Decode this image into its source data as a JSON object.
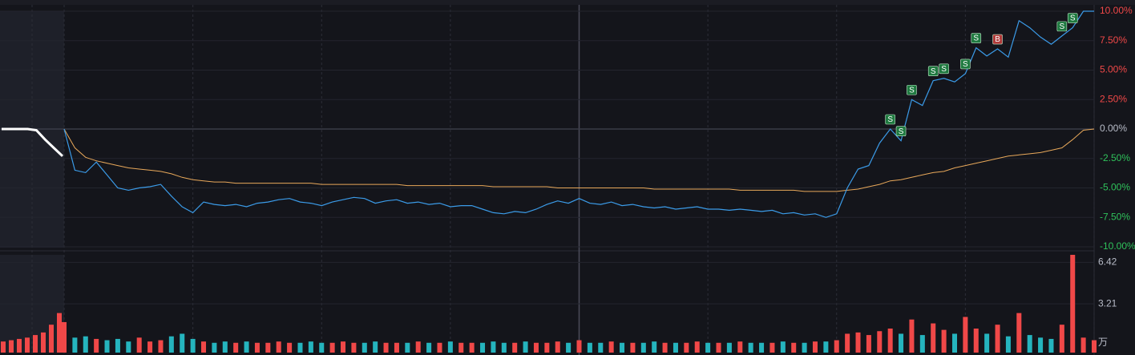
{
  "chart_data": {
    "type": "line",
    "ylim": [
      -10,
      10
    ],
    "yticks": [
      {
        "value": 10,
        "label": "10.00%"
      },
      {
        "value": 7.5,
        "label": "7.50%"
      },
      {
        "value": 5,
        "label": "5.00%"
      },
      {
        "value": 2.5,
        "label": "2.50%"
      },
      {
        "value": 0,
        "label": "0.00%"
      },
      {
        "value": -2.5,
        "label": "-2.50%"
      },
      {
        "value": -5,
        "label": "-5.00%"
      },
      {
        "value": -7.5,
        "label": "-7.50%"
      },
      {
        "value": -10,
        "label": "-10.00%"
      }
    ],
    "up_tick_color": "#f04848",
    "down_tick_color": "#2fc25b",
    "zero_tick_color": "#b8bcc8",
    "premarket": {
      "color": "#ffffff",
      "values": [
        0,
        0,
        0,
        0,
        -0.1,
        -0.9,
        -1.6,
        -2.3
      ]
    },
    "price": {
      "color": "#3b9be8",
      "values": [
        0,
        -3.5,
        -3.7,
        -2.8,
        -3.9,
        -5.0,
        -5.2,
        -5.0,
        -4.9,
        -4.7,
        -5.7,
        -6.6,
        -7.1,
        -6.2,
        -6.4,
        -6.5,
        -6.4,
        -6.6,
        -6.3,
        -6.2,
        -6.0,
        -5.9,
        -6.2,
        -6.3,
        -6.5,
        -6.2,
        -6.0,
        -5.8,
        -5.9,
        -6.3,
        -6.1,
        -6.0,
        -6.3,
        -6.2,
        -6.4,
        -6.3,
        -6.6,
        -6.5,
        -6.5,
        -6.8,
        -7.1,
        -7.2,
        -7.0,
        -7.1,
        -6.8,
        -6.4,
        -6.1,
        -6.3,
        -5.9,
        -6.3,
        -6.4,
        -6.2,
        -6.5,
        -6.4,
        -6.6,
        -6.7,
        -6.6,
        -6.8,
        -6.7,
        -6.6,
        -6.8,
        -6.8,
        -6.9,
        -6.8,
        -6.9,
        -7.0,
        -6.9,
        -7.2,
        -7.1,
        -7.3,
        -7.2,
        -7.5,
        -7.2,
        -5.0,
        -3.4,
        -3.1,
        -1.2,
        0.0,
        -1.0,
        2.5,
        2.0,
        4.1,
        4.3,
        4.0,
        4.7,
        6.9,
        6.2,
        6.8,
        6.1,
        9.2,
        8.6,
        7.8,
        7.2,
        7.9,
        8.6,
        10.0,
        10.0
      ],
      "trade_labels": [
        null,
        null,
        null,
        null,
        null,
        null,
        null,
        null,
        null,
        null,
        null,
        null,
        null,
        null,
        null,
        null,
        null,
        null,
        null,
        null,
        null,
        null,
        null,
        null,
        null,
        null,
        null,
        null,
        null,
        null,
        null,
        null,
        null,
        null,
        null,
        null,
        null,
        null,
        null,
        null,
        null,
        null,
        null,
        null,
        null,
        null,
        null,
        null,
        null,
        null,
        null,
        null,
        null,
        null,
        null,
        null,
        null,
        null,
        null,
        null,
        null,
        null,
        null,
        null,
        null,
        null,
        null,
        null,
        null,
        null,
        null,
        null,
        null,
        null,
        null,
        null,
        null,
        "S",
        "S",
        "S",
        null,
        "S",
        "S",
        null,
        "S",
        "S",
        null,
        "B",
        null,
        null,
        null,
        null,
        null,
        "S",
        "S",
        null,
        null
      ],
      "label_colors": {
        "S": "#1f7a40",
        "B": "#b23a3a"
      }
    },
    "average": {
      "color": "#e8a85a",
      "values": [
        0,
        -1.6,
        -2.4,
        -2.7,
        -2.9,
        -3.1,
        -3.3,
        -3.4,
        -3.5,
        -3.6,
        -3.8,
        -4.1,
        -4.3,
        -4.4,
        -4.5,
        -4.5,
        -4.6,
        -4.6,
        -4.6,
        -4.6,
        -4.6,
        -4.6,
        -4.6,
        -4.6,
        -4.7,
        -4.7,
        -4.7,
        -4.7,
        -4.7,
        -4.7,
        -4.7,
        -4.7,
        -4.8,
        -4.8,
        -4.8,
        -4.8,
        -4.8,
        -4.8,
        -4.8,
        -4.8,
        -4.9,
        -4.9,
        -4.9,
        -4.9,
        -4.9,
        -4.9,
        -5.0,
        -5.0,
        -5.0,
        -5.0,
        -5.0,
        -5.0,
        -5.0,
        -5.0,
        -5.0,
        -5.1,
        -5.1,
        -5.1,
        -5.1,
        -5.1,
        -5.1,
        -5.1,
        -5.1,
        -5.2,
        -5.2,
        -5.2,
        -5.2,
        -5.2,
        -5.2,
        -5.3,
        -5.3,
        -5.3,
        -5.3,
        -5.2,
        -5.1,
        -4.9,
        -4.7,
        -4.4,
        -4.3,
        -4.1,
        -3.9,
        -3.7,
        -3.6,
        -3.3,
        -3.1,
        -2.9,
        -2.7,
        -2.5,
        -2.3,
        -2.2,
        -2.1,
        -2.0,
        -1.8,
        -1.6,
        -0.9,
        -0.1,
        0.0
      ]
    },
    "volume": {
      "ylim": [
        0,
        7.0
      ],
      "yticks": [
        3.21,
        6.42
      ],
      "unit": "万",
      "up_color": "#f04848",
      "down_color": "#25b4be",
      "pre_color": "#f04848",
      "premarket_values": [
        0.3,
        0.4,
        0.5,
        0.6,
        0.8,
        1.0,
        1.6,
        2.5
      ],
      "values": [
        1.8,
        0.6,
        0.7,
        0.5,
        0.4,
        0.5,
        0.3,
        0.6,
        0.3,
        0.4,
        0.7,
        0.9,
        0.5,
        0.3,
        0.2,
        0.3,
        0.2,
        0.3,
        0.2,
        0.2,
        0.3,
        0.2,
        0.2,
        0.3,
        0.2,
        0.2,
        0.3,
        0.2,
        0.2,
        0.3,
        0.2,
        0.2,
        0.2,
        0.3,
        0.2,
        0.2,
        0.3,
        0.2,
        0.2,
        0.2,
        0.3,
        0.2,
        0.2,
        0.3,
        0.2,
        0.2,
        0.3,
        0.2,
        0.4,
        0.2,
        0.2,
        0.3,
        0.2,
        0.2,
        0.2,
        0.3,
        0.2,
        0.2,
        0.2,
        0.3,
        0.2,
        0.2,
        0.2,
        0.3,
        0.2,
        0.2,
        0.2,
        0.3,
        0.2,
        0.2,
        0.3,
        0.3,
        0.4,
        0.9,
        1.0,
        0.8,
        1.1,
        1.3,
        0.9,
        2.0,
        0.8,
        1.7,
        1.2,
        0.9,
        2.2,
        1.3,
        0.9,
        1.6,
        0.7,
        2.5,
        0.8,
        0.6,
        0.5,
        1.6,
        7.0,
        0.6,
        0.4
      ]
    }
  }
}
